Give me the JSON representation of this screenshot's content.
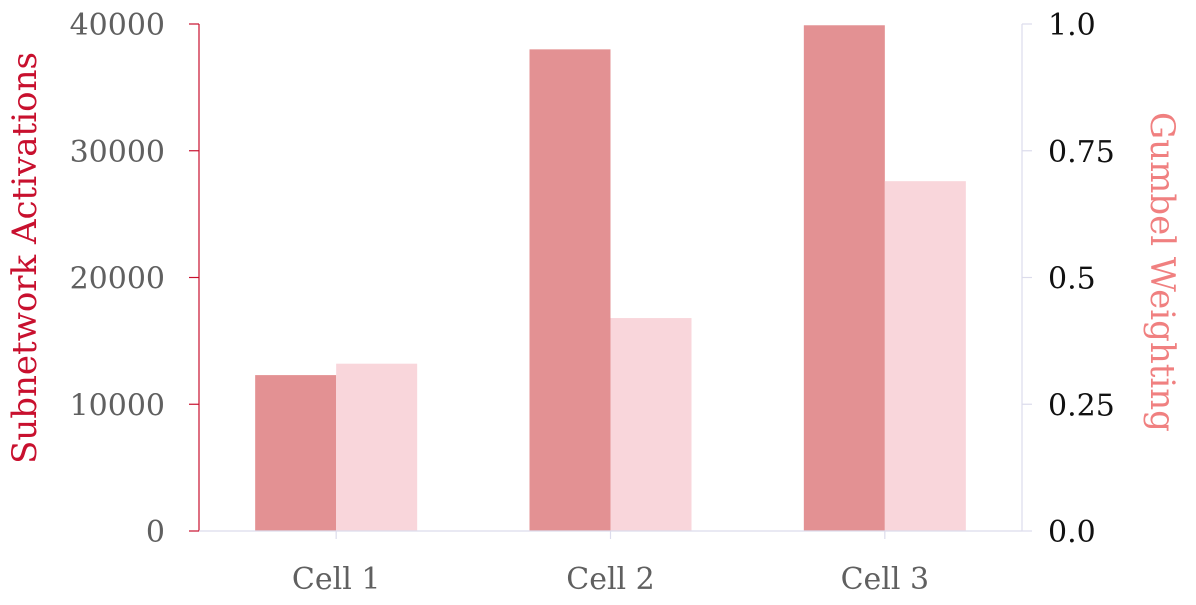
{
  "chart_data": {
    "type": "bar",
    "categories": [
      "Cell 1",
      "Cell 2",
      "Cell 3"
    ],
    "series": [
      {
        "name": "Subnetwork Activations",
        "axis": "left",
        "color": "#e39193",
        "values": [
          12300,
          38000,
          39900
        ]
      },
      {
        "name": "Gumbel Weighting",
        "axis": "right",
        "color": "#f9d6db",
        "values": [
          0.33,
          0.42,
          0.69
        ]
      }
    ],
    "ylabel": "Subnetwork Activations",
    "ylabel_right": "Gumbel Weighting",
    "ylim": [
      0,
      40000
    ],
    "ylim_right": [
      0,
      1.0
    ],
    "yticks": [
      "0",
      "10000",
      "20000",
      "30000",
      "40000"
    ],
    "yticks_right": [
      "0.0",
      "0.25",
      "0.5",
      "0.75",
      "1.0"
    ],
    "left_axis_color": "#c8102e",
    "right_axis_color": "#f08080",
    "grid": false,
    "legend": "none"
  }
}
